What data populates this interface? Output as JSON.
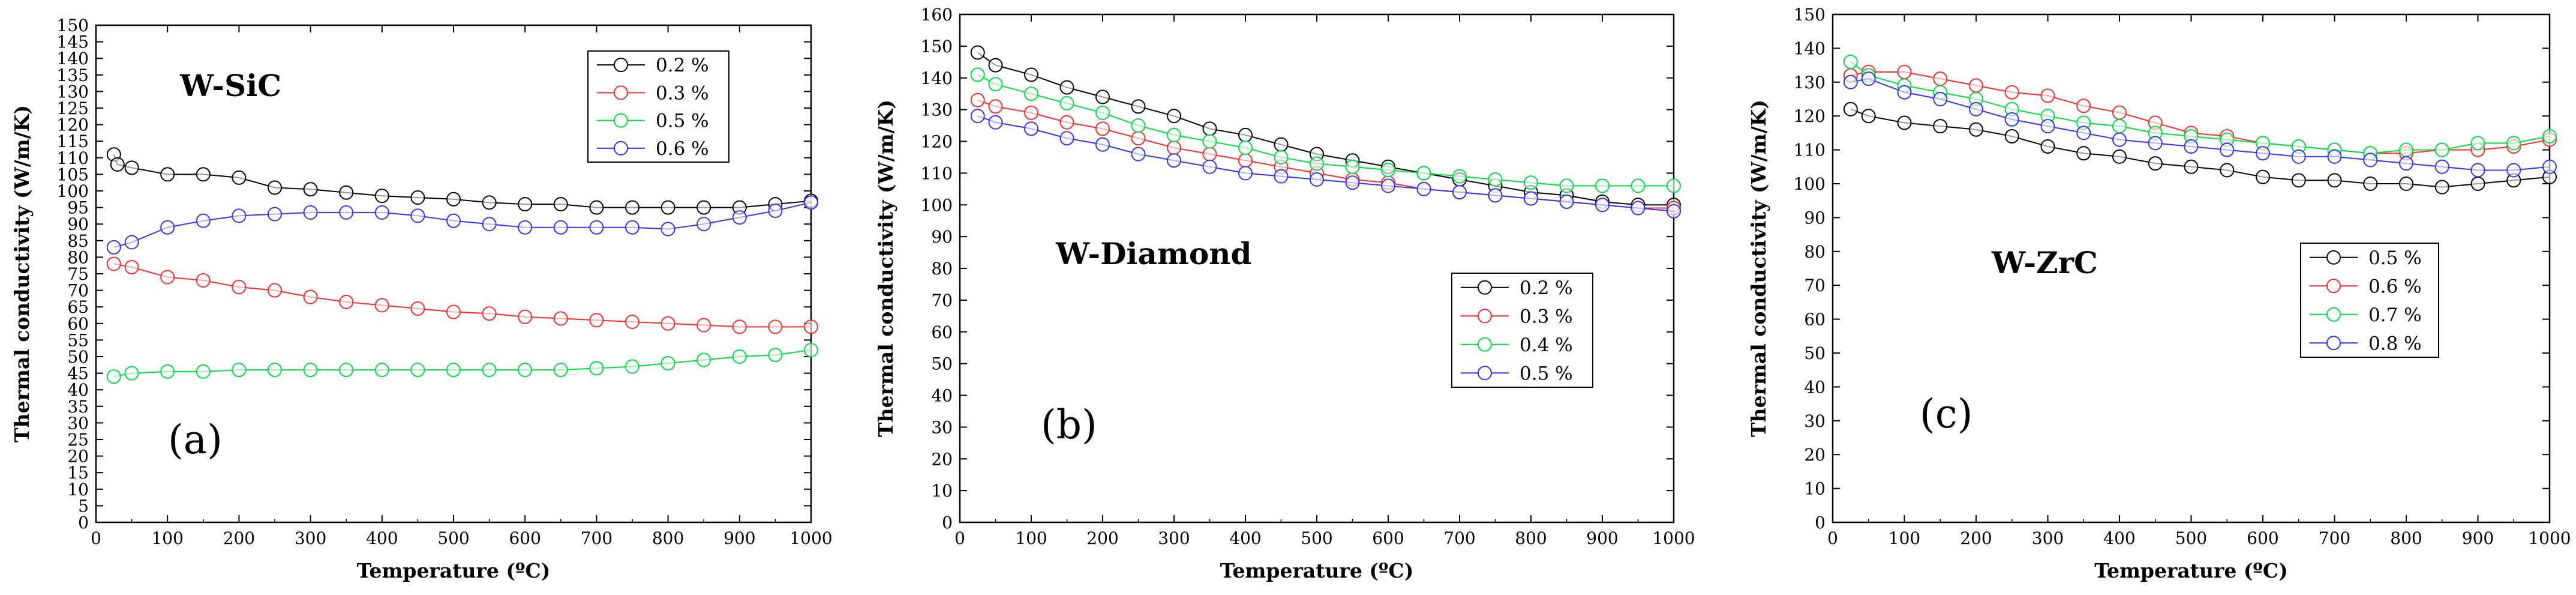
{
  "figure": {
    "description": "Thermal conductivity vs temperature for W composites",
    "colors": {
      "0.2": "#000000",
      "0.3": "#ff2a2a",
      "0.4": "#00e040",
      "0.5_green": "#00e040",
      "0.5_blue": "#3333ff",
      "0.6_red": "#ff2a2a",
      "0.6_blue": "#3333ff",
      "0.7": "#00e040",
      "0.8": "#3333ff"
    }
  },
  "chart_data": [
    {
      "type": "line",
      "panel_label": "(a)",
      "title": "W-SiC",
      "xlabel": "Temperature (ºC)",
      "ylabel": "Thermal conductivity (W/m/K)",
      "xlim": [
        0,
        1000
      ],
      "ylim": [
        0,
        150
      ],
      "xticks": [
        0,
        100,
        200,
        300,
        400,
        500,
        600,
        700,
        800,
        900,
        1000
      ],
      "yticks": [
        0,
        5,
        10,
        15,
        20,
        25,
        30,
        35,
        40,
        45,
        50,
        55,
        60,
        65,
        70,
        75,
        80,
        85,
        90,
        95,
        100,
        105,
        110,
        115,
        120,
        125,
        130,
        135,
        140,
        145,
        150
      ],
      "legend_position": "top-right",
      "grid": false,
      "series": [
        {
          "name": "0.2 %",
          "color": "#000000",
          "x": [
            25,
            30,
            50,
            100,
            150,
            200,
            250,
            300,
            350,
            400,
            450,
            500,
            550,
            600,
            650,
            700,
            750,
            800,
            850,
            900,
            950,
            1000
          ],
          "y": [
            111,
            108,
            107,
            105,
            105,
            104,
            101,
            100.5,
            99.5,
            98.5,
            98,
            97.5,
            96.5,
            96,
            96,
            95,
            95,
            95,
            95,
            95,
            96,
            97
          ]
        },
        {
          "name": "0.3 %",
          "color": "#ff2a2a",
          "x": [
            25,
            50,
            100,
            150,
            200,
            250,
            300,
            350,
            400,
            450,
            500,
            550,
            600,
            650,
            700,
            750,
            800,
            850,
            900,
            950,
            1000
          ],
          "y": [
            78,
            77,
            74,
            73,
            71,
            70,
            68,
            66.5,
            65.5,
            64.5,
            63.5,
            63,
            62,
            61.5,
            61,
            60.5,
            60,
            59.5,
            59,
            59,
            59
          ]
        },
        {
          "name": "0.5 %",
          "color": "#00e040",
          "x": [
            25,
            50,
            100,
            150,
            200,
            250,
            300,
            350,
            400,
            450,
            500,
            550,
            600,
            650,
            700,
            750,
            800,
            850,
            900,
            950,
            1000
          ],
          "y": [
            44,
            45,
            45.5,
            45.5,
            46,
            46,
            46,
            46,
            46,
            46,
            46,
            46,
            46,
            46,
            46.5,
            47,
            48,
            49,
            50,
            50.5,
            52
          ]
        },
        {
          "name": "0.6 %",
          "color": "#3333ff",
          "x": [
            25,
            50,
            100,
            150,
            200,
            250,
            300,
            350,
            400,
            450,
            500,
            550,
            600,
            650,
            700,
            750,
            800,
            850,
            900,
            950,
            1000
          ],
          "y": [
            83,
            84.5,
            89,
            91,
            92.5,
            93,
            93.5,
            93.5,
            93.5,
            92.5,
            91,
            90,
            89,
            89,
            89,
            89,
            88.5,
            90,
            92,
            94,
            96.5
          ]
        }
      ]
    },
    {
      "type": "line",
      "panel_label": "(b)",
      "title": "W-Diamond",
      "xlabel": "Temperature (ºC)",
      "ylabel": "Thermal conductivity (W/m/K)",
      "xlim": [
        0,
        1000
      ],
      "ylim": [
        0,
        160
      ],
      "xticks": [
        0,
        100,
        200,
        300,
        400,
        500,
        600,
        700,
        800,
        900,
        1000
      ],
      "yticks": [
        0,
        10,
        20,
        30,
        40,
        50,
        60,
        70,
        80,
        90,
        100,
        110,
        120,
        130,
        140,
        150,
        160
      ],
      "legend_position": "center-right",
      "grid": false,
      "series": [
        {
          "name": "0.2 %",
          "color": "#000000",
          "x": [
            25,
            50,
            100,
            150,
            200,
            250,
            300,
            350,
            400,
            450,
            500,
            550,
            600,
            650,
            700,
            750,
            800,
            850,
            900,
            950,
            1000
          ],
          "y": [
            148,
            144,
            141,
            137,
            134,
            131,
            128,
            124,
            122,
            119,
            116,
            114,
            112,
            110,
            108,
            106,
            104,
            103,
            101,
            100,
            100
          ]
        },
        {
          "name": "0.3 %",
          "color": "#ff2a2a",
          "x": [
            25,
            50,
            100,
            150,
            200,
            250,
            300,
            350,
            400,
            450,
            500,
            550,
            600,
            650,
            700,
            750,
            800,
            850,
            900,
            950,
            1000
          ],
          "y": [
            133,
            131,
            129,
            126,
            124,
            121,
            118,
            116,
            114,
            112,
            110,
            108,
            107,
            105,
            104,
            103,
            102,
            101,
            100,
            99,
            99
          ]
        },
        {
          "name": "0.4 %",
          "color": "#00e040",
          "x": [
            25,
            50,
            100,
            150,
            200,
            250,
            300,
            350,
            400,
            450,
            500,
            550,
            600,
            650,
            700,
            750,
            800,
            850,
            900,
            950,
            1000
          ],
          "y": [
            141,
            138,
            135,
            132,
            129,
            125,
            122,
            120,
            118,
            115,
            113,
            112,
            111,
            110,
            109,
            108,
            107,
            106,
            106,
            106,
            106
          ]
        },
        {
          "name": "0.5 %",
          "color": "#3333ff",
          "x": [
            25,
            50,
            100,
            150,
            200,
            250,
            300,
            350,
            400,
            450,
            500,
            550,
            600,
            650,
            700,
            750,
            800,
            850,
            900,
            950,
            1000
          ],
          "y": [
            128,
            126,
            124,
            121,
            119,
            116,
            114,
            112,
            110,
            109,
            108,
            107,
            106,
            105,
            104,
            103,
            102,
            101,
            100,
            99,
            98
          ]
        }
      ]
    },
    {
      "type": "line",
      "panel_label": "(c)",
      "title": "W-ZrC",
      "xlabel": "Temperature (ºC)",
      "ylabel": "Thermal conductivity (W/m/K)",
      "xlim": [
        0,
        1000
      ],
      "ylim": [
        0,
        150
      ],
      "xticks": [
        0,
        100,
        200,
        300,
        400,
        500,
        600,
        700,
        800,
        900,
        1000
      ],
      "yticks": [
        0,
        10,
        20,
        30,
        40,
        50,
        60,
        70,
        80,
        90,
        100,
        110,
        120,
        130,
        140,
        150
      ],
      "legend_position": "center-right",
      "grid": false,
      "series": [
        {
          "name": "0.5 %",
          "color": "#000000",
          "x": [
            25,
            50,
            100,
            150,
            200,
            250,
            300,
            350,
            400,
            450,
            500,
            550,
            600,
            650,
            700,
            750,
            800,
            850,
            900,
            950,
            1000
          ],
          "y": [
            122,
            120,
            118,
            117,
            116,
            114,
            111,
            109,
            108,
            106,
            105,
            104,
            102,
            101,
            101,
            100,
            100,
            99,
            100,
            101,
            102
          ]
        },
        {
          "name": "0.6 %",
          "color": "#ff2a2a",
          "x": [
            25,
            50,
            100,
            150,
            200,
            250,
            300,
            350,
            400,
            450,
            500,
            550,
            600,
            650,
            700,
            750,
            800,
            850,
            900,
            950,
            1000
          ],
          "y": [
            132,
            133,
            133,
            131,
            129,
            127,
            126,
            123,
            121,
            118,
            115,
            114,
            112,
            111,
            110,
            109,
            109,
            110,
            110,
            111,
            113
          ]
        },
        {
          "name": "0.7 %",
          "color": "#00e040",
          "x": [
            25,
            50,
            100,
            150,
            200,
            250,
            300,
            350,
            400,
            450,
            500,
            550,
            600,
            650,
            700,
            750,
            800,
            850,
            900,
            950,
            1000
          ],
          "y": [
            136,
            132,
            129,
            127,
            125,
            122,
            120,
            118,
            117,
            115,
            114,
            113,
            112,
            111,
            110,
            109,
            110,
            110,
            112,
            112,
            114
          ]
        },
        {
          "name": "0.8 %",
          "color": "#3333ff",
          "x": [
            25,
            50,
            100,
            150,
            200,
            250,
            300,
            350,
            400,
            450,
            500,
            550,
            600,
            650,
            700,
            750,
            800,
            850,
            900,
            950,
            1000
          ],
          "y": [
            130,
            131,
            127,
            125,
            122,
            119,
            117,
            115,
            113,
            112,
            111,
            110,
            109,
            108,
            108,
            107,
            106,
            105,
            104,
            104,
            105
          ]
        }
      ]
    }
  ]
}
